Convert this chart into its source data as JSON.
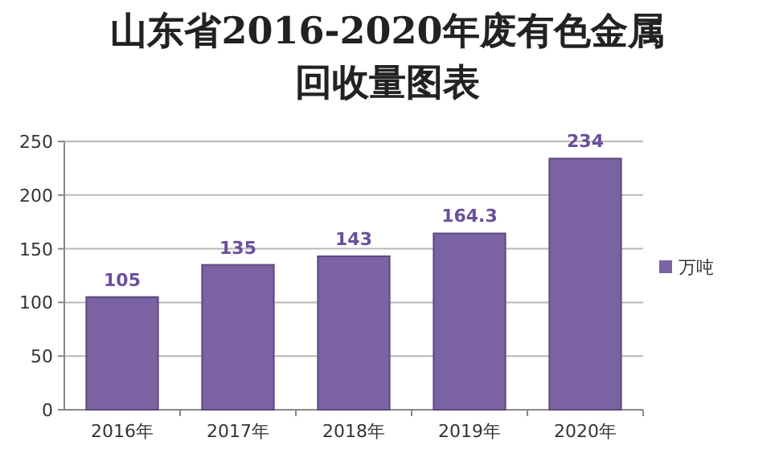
{
  "chart_data": {
    "type": "bar",
    "title": "山东省2016-2020年废有色金属回收量图表",
    "categories": [
      "2016年",
      "2017年",
      "2018年",
      "2019年",
      "2020年"
    ],
    "series": [
      {
        "name": "万吨",
        "color": "#7b62a3",
        "values": [
          105,
          135,
          143,
          164.3,
          234
        ]
      }
    ],
    "ylim": [
      0,
      250
    ],
    "yticks": [
      0,
      50,
      100,
      150,
      200,
      250
    ],
    "grid": "y",
    "legend": "right",
    "data_labels": true
  }
}
